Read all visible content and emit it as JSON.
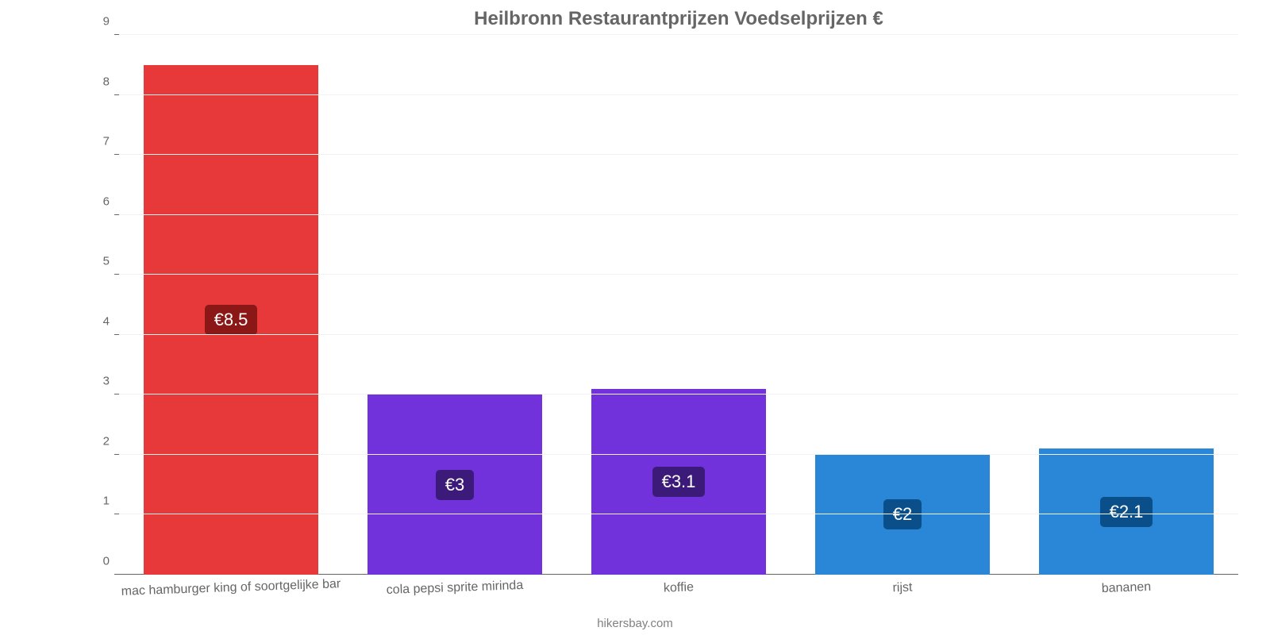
{
  "chart": {
    "type": "bar",
    "title": "Heilbronn Restaurantprijzen Voedselprijzen €",
    "title_fontsize": 24,
    "title_color": "#666666",
    "background_color": "#ffffff",
    "grid_color": "#f2f2f2",
    "axis_color": "#666666",
    "axis_fontsize": 15,
    "ylim": [
      0,
      9
    ],
    "ytick_step": 1,
    "categories": [
      "mac hamburger king of soortgelijke bar",
      "cola pepsi sprite mirinda",
      "koffie",
      "rijst",
      "bananen"
    ],
    "values": [
      8.5,
      3.0,
      3.1,
      2.0,
      2.1
    ],
    "value_labels": [
      "€8.5",
      "€3",
      "€3.1",
      "€2",
      "€2.1"
    ],
    "bar_colors": [
      "#e8393a",
      "#7232db",
      "#7232db",
      "#2a87d7",
      "#2a87d7"
    ],
    "badge_colors": [
      "#8c1717",
      "#3c1a7a",
      "#3c1a7a",
      "#0b4f8a",
      "#0b4f8a"
    ],
    "badge_fontsize": 22,
    "bar_width_ratio": 0.78,
    "xlabel_fontsize": 16,
    "xlabel_rotation_deg": -2,
    "footer": "hikersbay.com",
    "footer_fontsize": 15,
    "footer_color": "#808080"
  }
}
